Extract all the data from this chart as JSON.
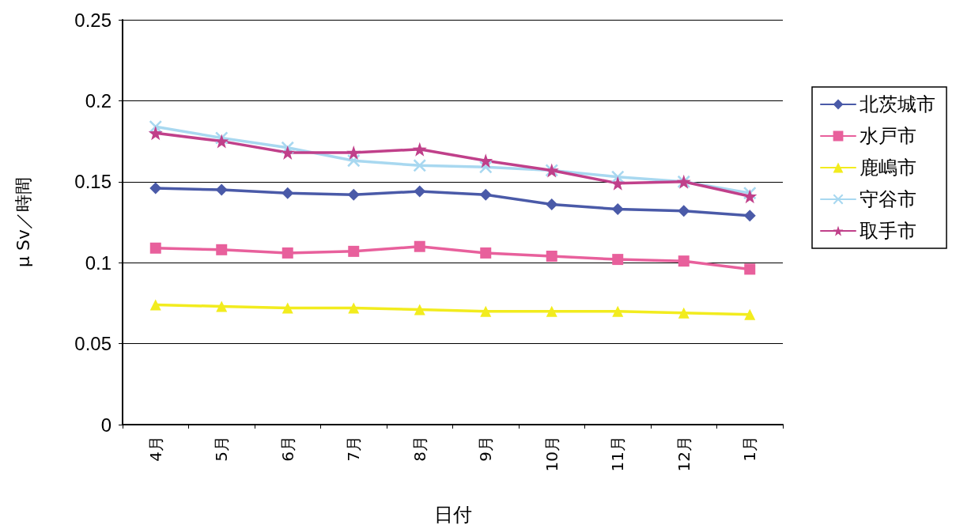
{
  "chart_data": {
    "type": "line",
    "xlabel": "日付",
    "ylabel": "μ Sv／時間",
    "categories": [
      "4月",
      "5月",
      "6月",
      "7月",
      "8月",
      "9月",
      "10月",
      "11月",
      "12月",
      "1月"
    ],
    "series": [
      {
        "name": "北茨城市",
        "color": "#4a5aa8",
        "marker": "diamond",
        "values": [
          0.146,
          0.145,
          0.143,
          0.142,
          0.144,
          0.142,
          0.136,
          0.133,
          0.132,
          0.129
        ]
      },
      {
        "name": "水戸市",
        "color": "#e8609c",
        "marker": "square",
        "values": [
          0.109,
          0.108,
          0.106,
          0.107,
          0.11,
          0.106,
          0.104,
          0.102,
          0.101,
          0.096
        ]
      },
      {
        "name": "鹿嶋市",
        "color": "#f2ec1e",
        "marker": "triangle",
        "values": [
          0.074,
          0.073,
          0.072,
          0.072,
          0.071,
          0.07,
          0.07,
          0.07,
          0.069,
          0.068
        ]
      },
      {
        "name": "守谷市",
        "color": "#a8d8f0",
        "marker": "cross",
        "values": [
          0.184,
          0.177,
          0.171,
          0.163,
          0.16,
          0.159,
          0.157,
          0.153,
          0.15,
          0.143
        ]
      },
      {
        "name": "取手市",
        "color": "#c0408a",
        "marker": "star",
        "values": [
          0.18,
          0.175,
          0.168,
          0.168,
          0.17,
          0.163,
          0.157,
          0.149,
          0.15,
          0.141
        ]
      }
    ],
    "ylim": [
      0,
      0.25
    ],
    "yticks": [
      0,
      0.05,
      0.1,
      0.15,
      0.2,
      0.25
    ],
    "grid": "y",
    "legend": "right"
  }
}
